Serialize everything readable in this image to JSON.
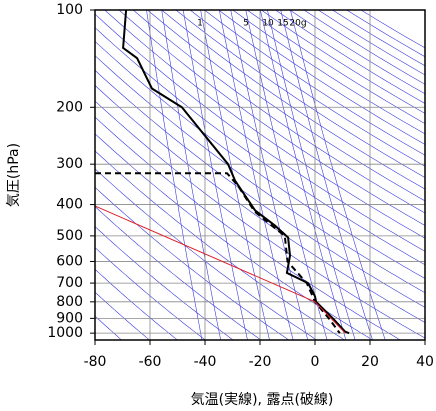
{
  "chart_data": {
    "type": "skew-t",
    "y_label": "気圧(hPa)",
    "x_label": "気温(実線), 露点(破線)",
    "xlim": [
      -80,
      40
    ],
    "xticks": [
      -80,
      -60,
      -40,
      -20,
      0,
      20,
      40
    ],
    "ylim": [
      1050,
      100
    ],
    "yticks": [
      100,
      200,
      300,
      400,
      500,
      600,
      700,
      800,
      900,
      1000
    ],
    "log_y": true,
    "grid": true,
    "mixing_ratio_labels": [
      "1",
      "5",
      "10",
      "15",
      "20g"
    ],
    "series": [
      {
        "color": "#000000",
        "dash": false,
        "y": [
          100,
          131,
          141,
          175,
          200,
          300,
          337,
          417,
          465,
          506,
          576,
          651,
          700,
          769,
          800,
          900,
          989,
          1000
        ],
        "values": [
          -68.7,
          -69.8,
          -64.7,
          -59.3,
          -48.4,
          -31.6,
          -29.1,
          -21.8,
          -14.5,
          -9.8,
          -9.1,
          -10.2,
          -2.5,
          0,
          0.4,
          6.5,
          10.9,
          12.4
        ]
      },
      {
        "color": "#000000",
        "dash": true,
        "y": [
          320,
          320,
          350,
          420,
          470,
          500,
          600,
          700,
          800,
          900,
          1000
        ],
        "values": [
          -80,
          -32,
          -28,
          -22,
          -15,
          -11,
          -10,
          -3,
          0,
          5,
          9
        ]
      },
      {
        "color": "#e0202a",
        "dash": false,
        "y": [
          404,
          800,
          1000
        ],
        "values": [
          -80,
          0,
          11
        ]
      }
    ]
  }
}
